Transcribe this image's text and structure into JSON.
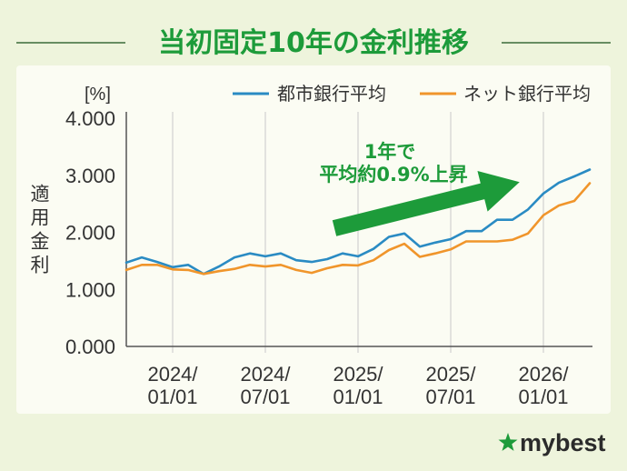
{
  "chart_data": {
    "type": "line",
    "title": "当初固定10年の金利推移",
    "ylabel": "適用金利",
    "yunit": "[%]",
    "ylim": [
      0,
      4
    ],
    "yticks": [
      "0.000",
      "1.000",
      "2.000",
      "3.000",
      "4.000"
    ],
    "xticks": [
      [
        "2024/",
        "01/01"
      ],
      [
        "2024/",
        "07/01"
      ],
      [
        "2025/",
        "01/01"
      ],
      [
        "2025/",
        "07/01"
      ],
      [
        "2026/",
        "01/01"
      ]
    ],
    "grid": {
      "vertical": true,
      "horizontal": false
    },
    "legend": "top",
    "x": [
      "2023/10/01",
      "2023/11/01",
      "2023/12/01",
      "2024/01/01",
      "2024/02/01",
      "2024/03/01",
      "2024/04/01",
      "2024/05/01",
      "2024/06/01",
      "2024/07/01",
      "2024/08/01",
      "2024/09/01",
      "2024/10/01",
      "2024/11/01",
      "2024/12/01",
      "2025/01/01",
      "2025/02/01",
      "2025/03/01",
      "2025/04/01",
      "2025/05/01",
      "2025/06/01",
      "2025/07/01",
      "2025/08/01",
      "2025/09/01",
      "2025/10/01",
      "2025/11/01",
      "2025/12/01",
      "2026/01/01",
      "2026/02/01",
      "2026/03/01",
      "2026/04/01"
    ],
    "series": [
      {
        "name": "都市銀行平均",
        "color": "#2a8bc3",
        "values": [
          1.47,
          1.56,
          1.48,
          1.39,
          1.43,
          1.27,
          1.4,
          1.56,
          1.63,
          1.58,
          1.63,
          1.51,
          1.48,
          1.53,
          1.63,
          1.58,
          1.71,
          1.92,
          1.98,
          1.75,
          1.82,
          1.88,
          2.02,
          2.02,
          2.22,
          2.22,
          2.4,
          2.68,
          2.87,
          2.98,
          3.1
        ]
      },
      {
        "name": "ネット銀行平均",
        "color": "#f0952b",
        "values": [
          1.34,
          1.43,
          1.43,
          1.35,
          1.34,
          1.27,
          1.32,
          1.36,
          1.43,
          1.4,
          1.43,
          1.34,
          1.29,
          1.37,
          1.43,
          1.42,
          1.51,
          1.69,
          1.8,
          1.57,
          1.63,
          1.7,
          1.84,
          1.84,
          1.84,
          1.87,
          1.98,
          2.3,
          2.47,
          2.55,
          2.86
        ]
      }
    ],
    "annotation": {
      "lines": [
        "1年で",
        "平均約0.9%上昇"
      ],
      "icon": "trend-arrow-icon",
      "color": "#1d9b3a"
    }
  },
  "brand": {
    "name": "mybest",
    "icon": "star-icon",
    "color": "#1d9b3a"
  },
  "colors": {
    "background": "#eef4dc",
    "panel": "#fbfcf3",
    "title": "#1d9b3a"
  }
}
